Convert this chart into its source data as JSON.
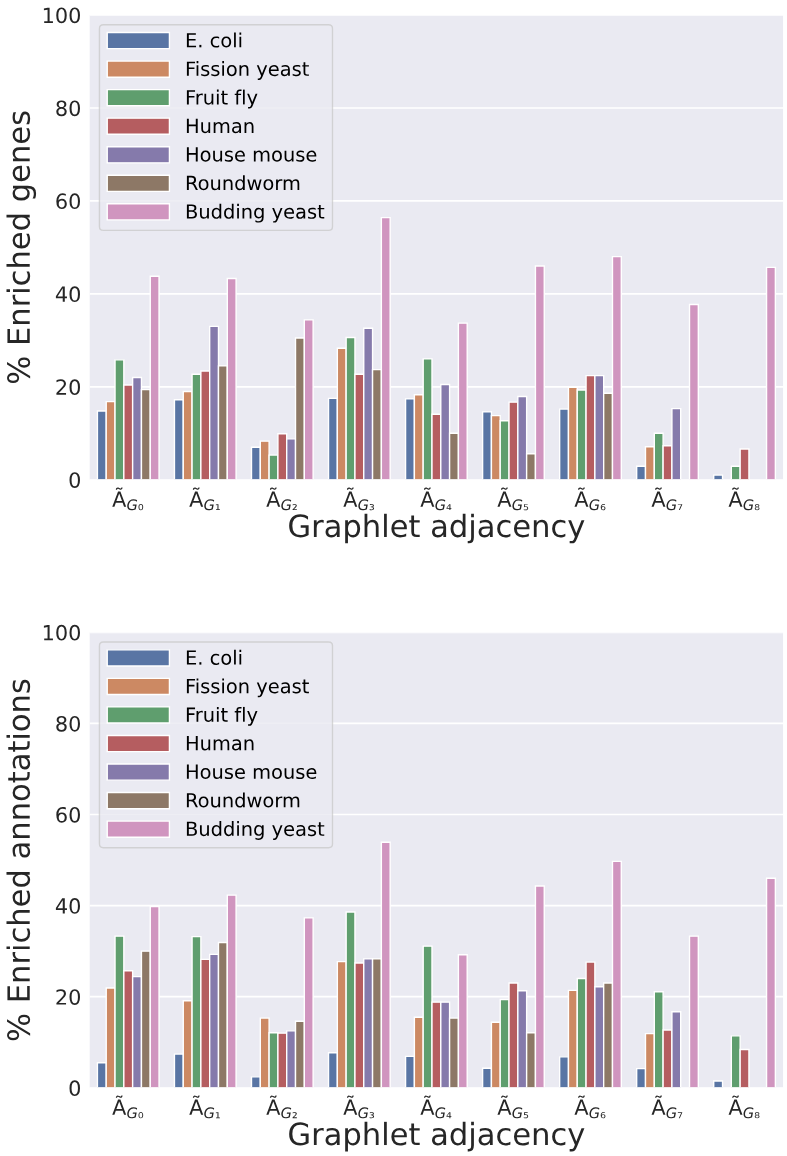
{
  "chart_data": [
    {
      "type": "bar",
      "xlabel": "Graphlet adjacency",
      "ylabel": "% Enriched genes",
      "categories": [
        "Ã$_{G₀}$",
        "Ã$_{G₁}$",
        "Ã$_{G₂}$",
        "Ã$_{G₃}$",
        "Ã$_{G₄}$",
        "Ã$_{G₅}$",
        "Ã$_{G₆}$",
        "Ã$_{G₇}$",
        "Ã$_{G₈}$"
      ],
      "ylim": [
        0,
        100
      ],
      "yticks": [
        0,
        20,
        40,
        60,
        80,
        100
      ],
      "grid": "y",
      "legend": "top left",
      "series": [
        {
          "name": "E. coli",
          "color": "#5975a4",
          "values": [
            14.8,
            17.2,
            7.0,
            17.5,
            17.4,
            14.6,
            15.2,
            2.9,
            1.0
          ]
        },
        {
          "name": "Fission yeast",
          "color": "#cc8963",
          "values": [
            16.8,
            19.0,
            8.3,
            28.3,
            18.3,
            13.8,
            19.9,
            7.1,
            null
          ]
        },
        {
          "name": "Fruit fly",
          "color": "#5f9e6e",
          "values": [
            25.8,
            22.7,
            5.3,
            30.6,
            26.0,
            12.7,
            19.3,
            10.0,
            2.9
          ]
        },
        {
          "name": "Human",
          "color": "#b55d60",
          "values": [
            20.4,
            23.4,
            9.9,
            22.7,
            14.1,
            16.7,
            22.4,
            7.3,
            6.6
          ]
        },
        {
          "name": "House mouse",
          "color": "#857aab",
          "values": [
            22.0,
            33.0,
            8.8,
            32.6,
            20.5,
            17.9,
            22.4,
            15.3,
            null
          ]
        },
        {
          "name": "Roundworm",
          "color": "#8d7866",
          "values": [
            19.4,
            24.5,
            30.5,
            23.7,
            10.0,
            5.6,
            18.6,
            null,
            null
          ]
        },
        {
          "name": "Budding yeast",
          "color": "#d095bf",
          "values": [
            43.8,
            43.3,
            34.4,
            56.4,
            33.7,
            46.0,
            48.0,
            37.7,
            45.7
          ]
        }
      ]
    },
    {
      "type": "bar",
      "xlabel": "Graphlet adjacency",
      "ylabel": "% Enriched annotations",
      "categories": [
        "Ã$_{G₀}$",
        "Ã$_{G₁}$",
        "Ã$_{G₂}$",
        "Ã$_{G₃}$",
        "Ã$_{G₄}$",
        "Ã$_{G₅}$",
        "Ã$_{G₆}$",
        "Ã$_{G₇}$",
        "Ã$_{G₈}$"
      ],
      "ylim": [
        0,
        100
      ],
      "yticks": [
        0,
        20,
        40,
        60,
        80,
        100
      ],
      "grid": "y",
      "legend": "top left",
      "series": [
        {
          "name": "E. coli",
          "color": "#5975a4",
          "values": [
            5.5,
            7.4,
            2.4,
            7.7,
            6.9,
            4.3,
            6.8,
            4.2,
            1.5
          ]
        },
        {
          "name": "Fission yeast",
          "color": "#cc8963",
          "values": [
            21.9,
            19.1,
            15.3,
            27.7,
            15.5,
            14.4,
            21.4,
            11.9,
            null
          ]
        },
        {
          "name": "Fruit fly",
          "color": "#5f9e6e",
          "values": [
            33.3,
            33.2,
            12.1,
            38.6,
            31.1,
            19.4,
            24.0,
            21.1,
            11.4
          ]
        },
        {
          "name": "Human",
          "color": "#b55d60",
          "values": [
            25.7,
            28.2,
            12.0,
            27.4,
            18.8,
            23.0,
            27.6,
            12.7,
            8.4
          ]
        },
        {
          "name": "House mouse",
          "color": "#857aab",
          "values": [
            24.4,
            29.3,
            12.5,
            28.3,
            18.8,
            21.3,
            22.2,
            16.7,
            null
          ]
        },
        {
          "name": "Roundworm",
          "color": "#8d7866",
          "values": [
            30.0,
            31.9,
            14.6,
            28.3,
            15.3,
            12.1,
            23.0,
            null,
            null
          ]
        },
        {
          "name": "Budding yeast",
          "color": "#d095bf",
          "values": [
            39.8,
            42.3,
            37.3,
            53.9,
            29.2,
            44.3,
            49.7,
            33.3,
            46.0
          ]
        }
      ]
    }
  ]
}
